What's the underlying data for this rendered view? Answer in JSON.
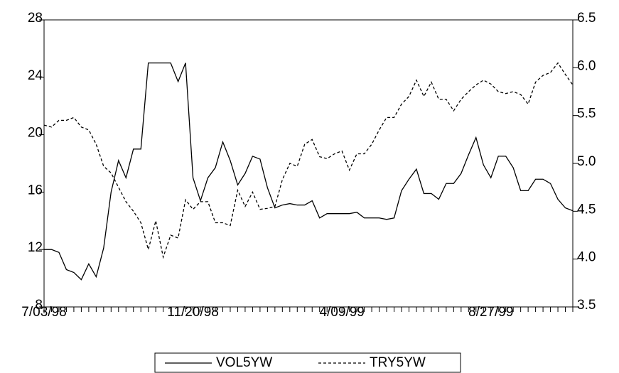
{
  "chart_data": {
    "type": "line",
    "categories": [
      "7/03/98",
      null,
      null,
      null,
      null,
      null,
      null,
      null,
      null,
      null,
      null,
      null,
      null,
      null,
      null,
      null,
      null,
      null,
      null,
      null,
      "11/20/98",
      null,
      null,
      null,
      null,
      null,
      null,
      null,
      null,
      null,
      null,
      null,
      null,
      null,
      null,
      null,
      null,
      null,
      null,
      null,
      "4/09/99",
      null,
      null,
      null,
      null,
      null,
      null,
      null,
      null,
      null,
      null,
      null,
      null,
      null,
      null,
      null,
      null,
      null,
      null,
      null,
      "8/27/99",
      null,
      null,
      null,
      null,
      null,
      null,
      null,
      null,
      null,
      null,
      null
    ],
    "series": [
      {
        "name": "VOL5YW",
        "color": "#000000",
        "dashed": false,
        "axis": "y",
        "values": [
          12,
          12,
          11.8,
          10.6,
          10.4,
          9.9,
          11,
          10.1,
          12.1,
          16,
          18.2,
          17,
          19,
          19,
          25,
          25,
          25,
          25,
          23.7,
          25,
          17,
          15.4,
          17,
          17.7,
          19.5,
          18.2,
          16.5,
          17.3,
          18.5,
          18.3,
          16.3,
          14.9,
          15.1,
          15.2,
          15.1,
          15.1,
          15.4,
          14.2,
          14.5,
          14.5,
          14.5,
          14.5,
          14.6,
          14.2,
          14.2,
          14.2,
          14.1,
          14.2,
          16.1,
          16.9,
          17.6,
          15.9,
          15.9,
          15.5,
          16.6,
          16.6,
          17.3,
          18.6,
          19.8,
          17.9,
          17,
          18.5,
          18.5,
          17.7,
          16.1,
          16.1,
          16.9,
          16.9,
          16.6,
          15.5,
          14.9,
          14.7
        ]
      },
      {
        "name": "TRY5YW",
        "color": "#000000",
        "dashed": true,
        "axis": "y2",
        "values": [
          5.4,
          5.38,
          5.45,
          5.45,
          5.48,
          5.38,
          5.35,
          5.2,
          4.97,
          4.9,
          4.75,
          4.6,
          4.5,
          4.38,
          4.1,
          4.4,
          4.02,
          4.25,
          4.22,
          4.62,
          4.52,
          4.6,
          4.6,
          4.38,
          4.38,
          4.35,
          4.72,
          4.55,
          4.7,
          4.52,
          4.53,
          4.55,
          4.83,
          5.0,
          4.97,
          5.2,
          5.25,
          5.07,
          5.05,
          5.1,
          5.13,
          4.93,
          5.1,
          5.1,
          5.2,
          5.35,
          5.48,
          5.48,
          5.62,
          5.7,
          5.87,
          5.7,
          5.85,
          5.67,
          5.67,
          5.55,
          5.67,
          5.75,
          5.82,
          5.87,
          5.83,
          5.75,
          5.73,
          5.75,
          5.72,
          5.62,
          5.85,
          5.92,
          5.95,
          6.05,
          5.93,
          5.82
        ]
      }
    ],
    "ylim": [
      8,
      28
    ],
    "yticks": [
      8,
      12,
      16,
      20,
      24,
      28
    ],
    "y2lim": [
      3.5,
      6.5
    ],
    "y2ticks": [
      3.5,
      {
        "value": 4,
        "label": "4.0"
      },
      4.5,
      {
        "value": 5,
        "label": "5.0"
      },
      5.5,
      {
        "value": 6,
        "label": "6.0"
      },
      6.5
    ],
    "grid": false,
    "legend": "bottom"
  }
}
